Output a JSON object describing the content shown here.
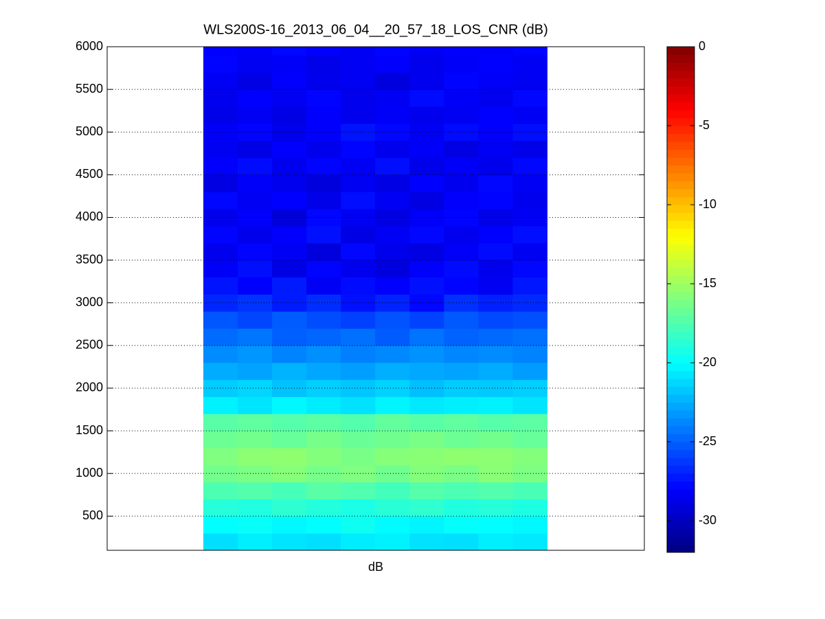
{
  "chart_data": {
    "type": "heatmap",
    "title": "WLS200S-16_2013_06_04__20_57_18_LOS_CNR (dB)",
    "xlabel": "dB",
    "ylim": [
      100,
      6000
    ],
    "yticks": [
      500,
      1000,
      1500,
      2000,
      2500,
      3000,
      3500,
      4000,
      4500,
      5000,
      5500,
      6000
    ],
    "grid": true,
    "colormap": "jet",
    "clim": [
      -32,
      0
    ],
    "cticks": [
      -30,
      -25,
      -20,
      -15,
      -10,
      -5,
      0
    ],
    "y": [
      200,
      400,
      600,
      800,
      1000,
      1200,
      1400,
      1600,
      1800,
      2000,
      2200,
      2400,
      2600,
      2800,
      3000,
      3200,
      3400,
      3600,
      3800,
      4000,
      4200,
      4400,
      4600,
      4800,
      5000,
      5200,
      5400,
      5600,
      5800,
      6000
    ],
    "values": [
      [
        -21,
        -20.5,
        -20.8,
        -21,
        -20.6,
        -20.4,
        -20.9,
        -21,
        -20.5,
        -20.7
      ],
      [
        -20,
        -19.8,
        -20.2,
        -20,
        -19.6,
        -20.1,
        -20.3,
        -19.9,
        -20,
        -20.2
      ],
      [
        -18.8,
        -19,
        -18.6,
        -18.9,
        -19.2,
        -18.7,
        -18.5,
        -19,
        -18.8,
        -19.1
      ],
      [
        -17.6,
        -17.4,
        -17.8,
        -17.2,
        -17.5,
        -17.9,
        -17.3,
        -17.6,
        -17.4,
        -17.7
      ],
      [
        -16.4,
        -16.1,
        -15.8,
        -16.3,
        -16,
        -16.5,
        -15.9,
        -16.2,
        -15.7,
        -16.1
      ],
      [
        -16,
        -15.6,
        -15.5,
        -15.9,
        -16.2,
        -15.8,
        -15.7,
        -15.5,
        -15.6,
        -15.9
      ],
      [
        -16.6,
        -16.4,
        -16.8,
        -16.3,
        -16.7,
        -16.5,
        -16.2,
        -16.6,
        -16.4,
        -16.8
      ],
      [
        -17.2,
        -17,
        -17.3,
        -17.1,
        -17.4,
        -16.9,
        -17.2,
        -17,
        -17.3,
        -17.1
      ],
      [
        -20.4,
        -20.8,
        -20.2,
        -20.6,
        -20.9,
        -20.3,
        -20.7,
        -20.5,
        -20.4,
        -20.8
      ],
      [
        -21.6,
        -21.3,
        -21.9,
        -21.5,
        -21.8,
        -21.4,
        -22,
        -21.6,
        -21.7,
        -21.5
      ],
      [
        -22.6,
        -22.9,
        -22.4,
        -22.8,
        -23,
        -22.5,
        -22.7,
        -22.9,
        -22.6,
        -23.1
      ],
      [
        -23.6,
        -23.3,
        -23.9,
        -23.5,
        -24,
        -23.7,
        -23.4,
        -23.8,
        -23.6,
        -23.9
      ],
      [
        -24.6,
        -24.3,
        -25,
        -24.8,
        -24.5,
        -25.1,
        -24.4,
        -24.9,
        -24.7,
        -24.5
      ],
      [
        -25.3,
        -25.8,
        -25.1,
        -25.6,
        -26,
        -25.4,
        -25.9,
        -25.2,
        -25.7,
        -25.5
      ],
      [
        -26.8,
        -26.4,
        -27.2,
        -26.6,
        -27.5,
        -26.9,
        -27.8,
        -26.5,
        -27,
        -26.7
      ],
      [
        -27.4,
        -28,
        -27.2,
        -28.3,
        -27.7,
        -28.1,
        -27.5,
        -27.9,
        -28.4,
        -27.3
      ],
      [
        -28.2,
        -27.6,
        -28.8,
        -27.9,
        -28.5,
        -29,
        -28.1,
        -27.7,
        -28.6,
        -27.8
      ],
      [
        -28.5,
        -27.9,
        -28.3,
        -29.1,
        -27.8,
        -28.6,
        -28.9,
        -28.2,
        -27.7,
        -28.4
      ],
      [
        -27.9,
        -28.6,
        -28.1,
        -27.5,
        -28.8,
        -28.3,
        -27.8,
        -28.5,
        -28,
        -27.6
      ],
      [
        -28.6,
        -28.1,
        -29.2,
        -27.8,
        -28.4,
        -28.9,
        -28.2,
        -27.9,
        -28.7,
        -28.3
      ],
      [
        -27.8,
        -28.4,
        -28,
        -28.7,
        -27.6,
        -28.3,
        -28.9,
        -28.1,
        -27.9,
        -28.5
      ],
      [
        -28.9,
        -28.2,
        -28.6,
        -29.1,
        -28.4,
        -28.8,
        -28,
        -28.5,
        -27.8,
        -28.3
      ],
      [
        -28.1,
        -27.7,
        -28.5,
        -27.9,
        -28.3,
        -27.6,
        -28.7,
        -28.2,
        -28.6,
        -27.8
      ],
      [
        -28.4,
        -28.8,
        -28.1,
        -28.6,
        -27.9,
        -28.5,
        -28.2,
        -28.9,
        -28.3,
        -28.7
      ],
      [
        -28.2,
        -27.9,
        -28.6,
        -28,
        -27.4,
        -27.8,
        -28.3,
        -27.7,
        -28.1,
        -27.6
      ],
      [
        -28.7,
        -28.3,
        -28.8,
        -28.1,
        -28.5,
        -28.2,
        -28.6,
        -28.4,
        -28,
        -28.3
      ],
      [
        -28.5,
        -28,
        -28.4,
        -27.9,
        -28.6,
        -28.3,
        -27.7,
        -28.2,
        -28.5,
        -27.8
      ],
      [
        -28.3,
        -28.8,
        -28.1,
        -28.6,
        -28.4,
        -29,
        -28.5,
        -27.9,
        -28.2,
        -28.4
      ],
      [
        -27.9,
        -28.4,
        -28.2,
        -28.7,
        -28.3,
        -28.1,
        -28.6,
        -28.2,
        -28,
        -28.3
      ],
      [
        -28,
        -28.2,
        -27.8,
        -28.1,
        -28.4,
        -27.9,
        -28.3,
        -28.1,
        -28.2,
        -27.9
      ]
    ]
  }
}
